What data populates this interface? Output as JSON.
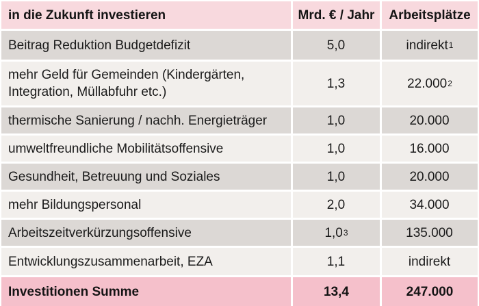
{
  "colors": {
    "header_pink": "#f8d9de",
    "summary_pink": "#f5c0cb",
    "row_gray": "#dcd8d5",
    "row_light": "#f2efec",
    "separator_white": "#ffffff",
    "text": "#1a1a1a"
  },
  "header": {
    "title": "in die Zukunft investieren",
    "col_amount": "Mrd. € / Jahr",
    "col_jobs": "Arbeitsplätze"
  },
  "rows": [
    {
      "label": "Beitrag Reduktion Budgetdefizit",
      "amount": "5,0",
      "amount_sup": "",
      "jobs": "indirekt",
      "jobs_sup": "1"
    },
    {
      "label": "mehr Geld für Gemeinden (Kindergärten, Integration, Müllabfuhr etc.)",
      "amount": "1,3",
      "amount_sup": "",
      "jobs": "22.000",
      "jobs_sup": "2"
    },
    {
      "label": "thermische Sanierung / nachh. Energieträger",
      "amount": "1,0",
      "amount_sup": "",
      "jobs": "20.000",
      "jobs_sup": ""
    },
    {
      "label": "umweltfreundliche Mobilitätsoffensive",
      "amount": "1,0",
      "amount_sup": "",
      "jobs": "16.000",
      "jobs_sup": ""
    },
    {
      "label": "Gesundheit, Betreuung und Soziales",
      "amount": "1,0",
      "amount_sup": "",
      "jobs": "20.000",
      "jobs_sup": ""
    },
    {
      "label": "mehr Bildungspersonal",
      "amount": "2,0",
      "amount_sup": "",
      "jobs": "34.000",
      "jobs_sup": ""
    },
    {
      "label": "Arbeitszeitverkürzungsoffensive",
      "amount": "1,0",
      "amount_sup": "3",
      "jobs": "135.000",
      "jobs_sup": ""
    },
    {
      "label": "Entwicklungszusammenarbeit, EZA",
      "amount": "1,1",
      "amount_sup": "",
      "jobs": "indirekt",
      "jobs_sup": ""
    }
  ],
  "summary": {
    "label": "Investitionen Summe",
    "amount": "13,4",
    "jobs": "247.000"
  },
  "chart_data": {
    "type": "table",
    "title": "in die Zukunft investieren",
    "columns": [
      "in die Zukunft investieren",
      "Mrd. € / Jahr",
      "Arbeitsplätze"
    ],
    "rows": [
      [
        "Beitrag Reduktion Budgetdefizit",
        "5,0",
        "indirekt (Fußnote 1)"
      ],
      [
        "mehr Geld für Gemeinden (Kindergärten, Integration, Müllabfuhr etc.)",
        "1,3",
        "22.000 (Fußnote 2)"
      ],
      [
        "thermische Sanierung / nachh. Energieträger",
        "1,0",
        "20.000"
      ],
      [
        "umweltfreundliche Mobilitätsoffensive",
        "1,0",
        "16.000"
      ],
      [
        "Gesundheit, Betreuung und Soziales",
        "1,0",
        "20.000"
      ],
      [
        "mehr Bildungspersonal",
        "2,0",
        "34.000"
      ],
      [
        "Arbeitszeitverkürzungsoffensive",
        "1,0 (Fußnote 3)",
        "135.000"
      ],
      [
        "Entwicklungszusammenarbeit, EZA",
        "1,1",
        "indirekt"
      ]
    ],
    "summary_row": [
      "Investitionen Summe",
      "13,4",
      "247.000"
    ],
    "totals": {
      "amount_mrd_eur_per_year": 13.4,
      "jobs": 247000
    }
  }
}
